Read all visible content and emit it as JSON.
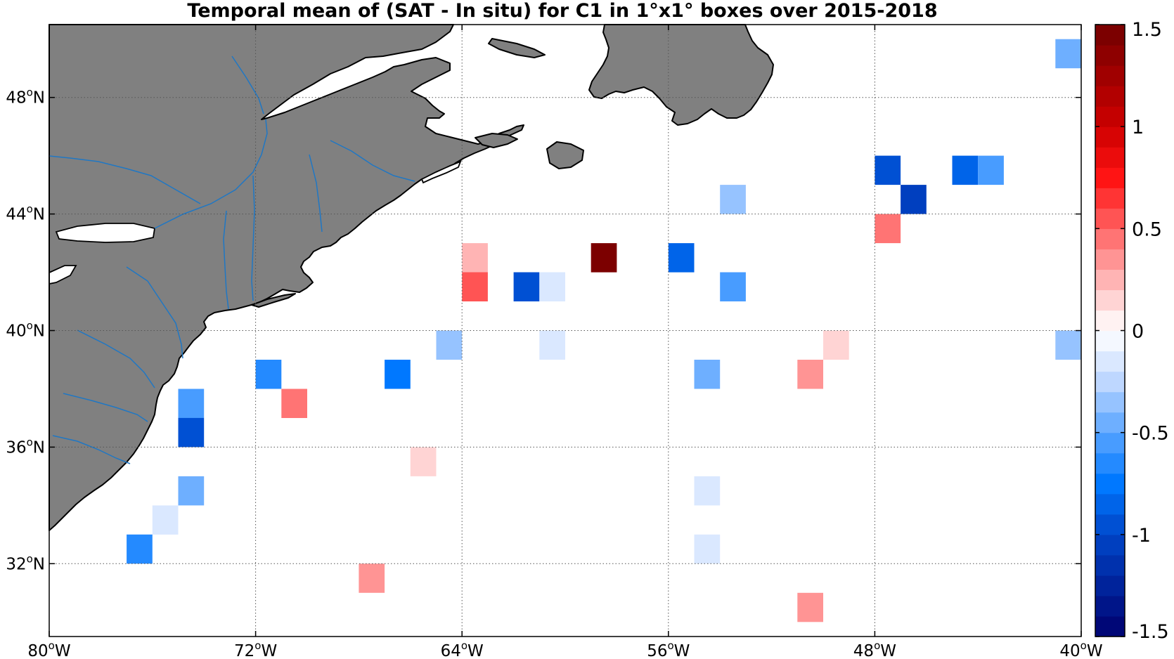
{
  "title": "Temporal mean of (SAT - In situ) for C1 in 1°x1° boxes over 2015-2018",
  "map": {
    "lon_range": [
      -80,
      -40
    ],
    "lat_range": [
      29.5,
      50.5
    ],
    "x_ticks": [
      {
        "value": -80,
        "num": "80",
        "unit": "W"
      },
      {
        "value": -72,
        "num": "72",
        "unit": "W"
      },
      {
        "value": -64,
        "num": "64",
        "unit": "W"
      },
      {
        "value": -56,
        "num": "56",
        "unit": "W"
      },
      {
        "value": -48,
        "num": "48",
        "unit": "W"
      },
      {
        "value": -40,
        "num": "40",
        "unit": "W"
      }
    ],
    "y_ticks": [
      {
        "value": 32,
        "num": "32",
        "unit": "N"
      },
      {
        "value": 36,
        "num": "36",
        "unit": "N"
      },
      {
        "value": 40,
        "num": "40",
        "unit": "N"
      },
      {
        "value": 44,
        "num": "44",
        "unit": "N"
      },
      {
        "value": 48,
        "num": "48",
        "unit": "N"
      }
    ],
    "grid": true,
    "land_color": "#808080",
    "river_color": "#1f77c4"
  },
  "colorbar": {
    "min": -1.5,
    "max": 1.5,
    "levels": 30,
    "position": "right",
    "ticks": [
      {
        "value": 1.5,
        "label": "1.5"
      },
      {
        "value": 1,
        "label": "1"
      },
      {
        "value": 0.5,
        "label": "0.5"
      },
      {
        "value": 0,
        "label": "0"
      },
      {
        "value": -0.5,
        "label": "-0.5"
      },
      {
        "value": -1,
        "label": "-1"
      },
      {
        "value": -1.5,
        "label": "-1.5"
      }
    ]
  },
  "chart_data": {
    "type": "heatmap",
    "title": "Temporal mean of (SAT - In situ) for C1 in 1°x1° boxes over 2015-2018",
    "xlim": [
      -80,
      -40
    ],
    "ylim": [
      29.5,
      50.5
    ],
    "cells": [
      {
        "lon": -41,
        "lat": 49,
        "value": -0.45
      },
      {
        "lon": -48,
        "lat": 45,
        "value": -1.0
      },
      {
        "lon": -45,
        "lat": 45,
        "value": -0.8
      },
      {
        "lon": -44,
        "lat": 45,
        "value": -0.55
      },
      {
        "lon": -47,
        "lat": 44,
        "value": -1.05
      },
      {
        "lon": -54,
        "lat": 44,
        "value": -0.3
      },
      {
        "lon": -48,
        "lat": 43,
        "value": 0.45
      },
      {
        "lon": -64,
        "lat": 42,
        "value": 0.25
      },
      {
        "lon": -59,
        "lat": 42,
        "value": 1.45
      },
      {
        "lon": -56,
        "lat": 42,
        "value": -0.8
      },
      {
        "lon": -64,
        "lat": 41,
        "value": 0.55
      },
      {
        "lon": -62,
        "lat": 41,
        "value": -0.9
      },
      {
        "lon": -61,
        "lat": 41,
        "value": -0.15
      },
      {
        "lon": -54,
        "lat": 41,
        "value": -0.55
      },
      {
        "lon": -65,
        "lat": 39,
        "value": -0.3
      },
      {
        "lon": -61,
        "lat": 39,
        "value": -0.15
      },
      {
        "lon": -50,
        "lat": 39,
        "value": 0.15
      },
      {
        "lon": -41,
        "lat": 39,
        "value": -0.35
      },
      {
        "lon": -72,
        "lat": 38,
        "value": -0.7
      },
      {
        "lon": -67,
        "lat": 38,
        "value": -0.75
      },
      {
        "lon": -55,
        "lat": 38,
        "value": -0.5
      },
      {
        "lon": -51,
        "lat": 38,
        "value": 0.3
      },
      {
        "lon": -75,
        "lat": 37,
        "value": -0.55
      },
      {
        "lon": -71,
        "lat": 37,
        "value": 0.45
      },
      {
        "lon": -75,
        "lat": 36,
        "value": -1.0
      },
      {
        "lon": -66,
        "lat": 35,
        "value": 0.15
      },
      {
        "lon": -75,
        "lat": 34,
        "value": -0.45
      },
      {
        "lon": -55,
        "lat": 34,
        "value": -0.15
      },
      {
        "lon": -76,
        "lat": 33,
        "value": -0.15
      },
      {
        "lon": -77,
        "lat": 32,
        "value": -0.65
      },
      {
        "lon": -55,
        "lat": 32,
        "value": -0.15
      },
      {
        "lon": -68,
        "lat": 31,
        "value": 0.3
      },
      {
        "lon": -51,
        "lat": 30,
        "value": 0.3
      }
    ]
  }
}
